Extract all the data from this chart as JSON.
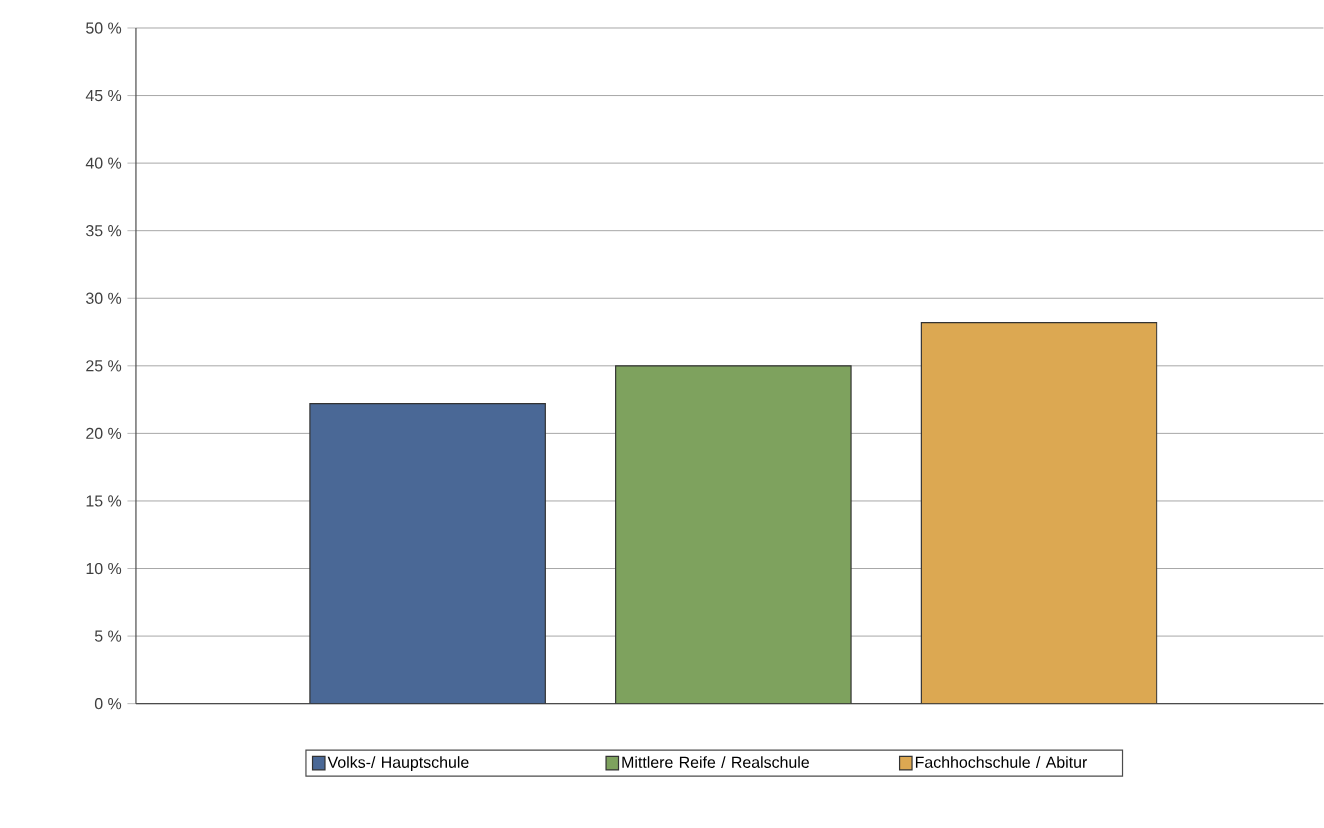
{
  "chart_data": {
    "type": "bar",
    "categories": [
      null,
      null,
      null
    ],
    "series": [
      {
        "name": "Volks-/ Hauptschule",
        "color": "#4a6896",
        "values": [
          22.2,
          null,
          null
        ]
      },
      {
        "name": "Mittlere Reife / Realschule",
        "color": "#7ea25e",
        "values": [
          null,
          25,
          null
        ]
      },
      {
        "name": "Fachhochschule / Abitur",
        "color": "#dca852",
        "values": [
          null,
          null,
          28.2
        ]
      }
    ],
    "ylim": [
      0,
      50
    ],
    "yticks": [
      {
        "value": 0,
        "label": "0 %"
      },
      {
        "value": 5,
        "label": "5 %"
      },
      {
        "value": 10,
        "label": "10 %"
      },
      {
        "value": 15,
        "label": "15 %"
      },
      {
        "value": 20,
        "label": "20 %"
      },
      {
        "value": 25,
        "label": "25 %"
      },
      {
        "value": 30,
        "label": "30 %"
      },
      {
        "value": 35,
        "label": "35 %"
      },
      {
        "value": 40,
        "label": "40 %"
      },
      {
        "value": 45,
        "label": "45 %"
      },
      {
        "value": 50,
        "label": "50 %"
      }
    ],
    "grid": "y",
    "legend": "bottom"
  }
}
